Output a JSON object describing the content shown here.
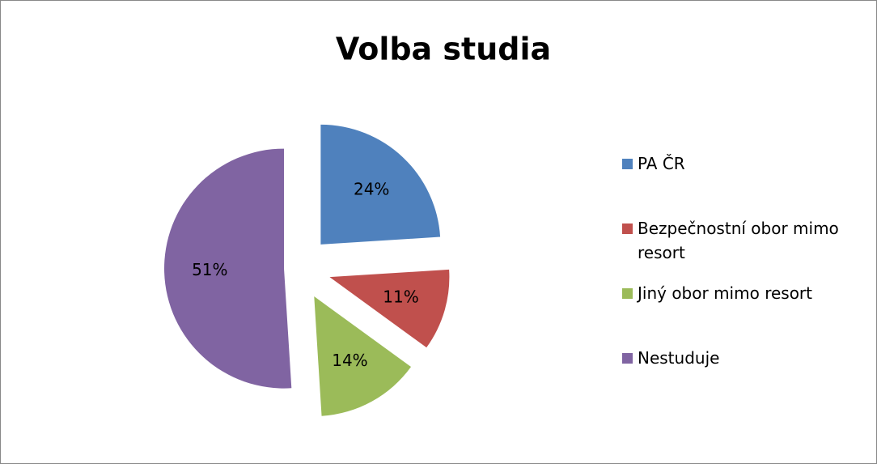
{
  "chart_data": {
    "type": "pie",
    "title": "Volba studia",
    "categories": [
      "PA ČR",
      "Bezpečnostní obor mimo resort",
      "Jiný obor mimo resort",
      "Nestuduje"
    ],
    "values": [
      24,
      11,
      14,
      51
    ],
    "value_labels": [
      "24%",
      "11%",
      "14%",
      "51%"
    ],
    "colors": [
      "#4f81bd",
      "#c0504d",
      "#9bbb59",
      "#8064a2"
    ],
    "legend": "right"
  }
}
